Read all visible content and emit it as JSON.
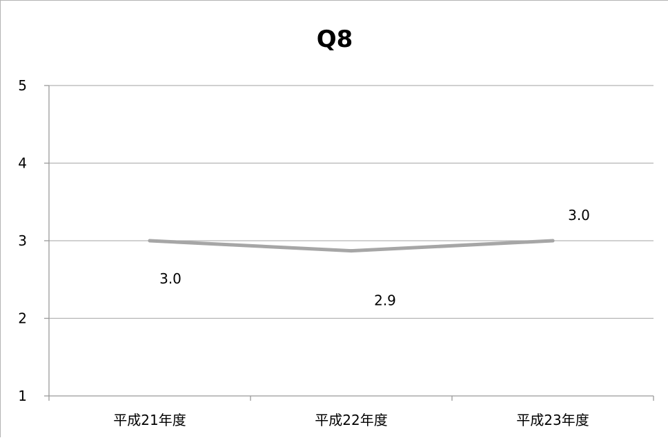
{
  "chart_data": {
    "type": "line",
    "title": "Q8",
    "xlabel": "",
    "ylabel": "",
    "categories": [
      "平成21年度",
      "平成22年度",
      "平成23年度"
    ],
    "series": [
      {
        "values": [
          3.0,
          2.87,
          3.0
        ],
        "labels": [
          "3.0",
          "2.9",
          "3.0"
        ],
        "color": "#a6a6a6"
      }
    ],
    "ylim": [
      1,
      5
    ],
    "yticks": [
      "1",
      "2",
      "3",
      "4",
      "5"
    ],
    "grid": true,
    "legend": "none"
  }
}
